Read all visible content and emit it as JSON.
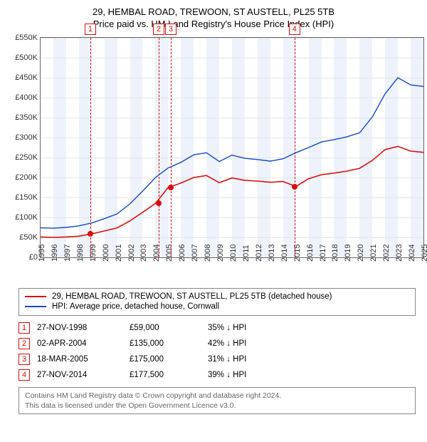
{
  "title_line1": "29, HEMBAL ROAD, TREWOON, ST AUSTELL, PL25 5TB",
  "title_line2": "Price paid vs. HM Land Registry's House Price Index (HPI)",
  "chart": {
    "type": "line",
    "background_color": "#ffffff",
    "band_color": "#edf2fb",
    "grid_color": "#e4e4e4",
    "axis_color": "#666666",
    "xlim": [
      1995,
      2025
    ],
    "xtick_step": 1,
    "xtick_rotation": -90,
    "xlabel_fontsize": 11,
    "ylim": [
      0,
      550000
    ],
    "ytick_step": 50000,
    "ytick_labels": [
      "£0",
      "£50K",
      "£100K",
      "£150K",
      "£200K",
      "£250K",
      "£300K",
      "£350K",
      "£400K",
      "£450K",
      "£500K",
      "£550K"
    ],
    "ylabel_fontsize": 11,
    "x_years": [
      1995,
      1996,
      1997,
      1998,
      1999,
      2000,
      2001,
      2002,
      2003,
      2004,
      2005,
      2006,
      2007,
      2008,
      2009,
      2010,
      2011,
      2012,
      2013,
      2014,
      2015,
      2016,
      2017,
      2018,
      2019,
      2020,
      2021,
      2022,
      2023,
      2024,
      2025
    ],
    "series": {
      "property": {
        "label": "29, HEMBAL ROAD, TREWOON, ST AUSTELL, PL25 5TB (detached house)",
        "color": "#d90e0e",
        "line_width": 1.6,
        "y": [
          51000,
          50000,
          51000,
          53000,
          59000,
          66000,
          74000,
          91000,
          113000,
          135000,
          175000,
          186000,
          200000,
          205000,
          187000,
          199000,
          193000,
          191000,
          188000,
          190000,
          177500,
          197000,
          207000,
          211000,
          216000,
          223000,
          243000,
          270000,
          278000,
          266000,
          263000
        ]
      },
      "hpi": {
        "label": "HPI: Average price, detached house, Cornwall",
        "color": "#1349c4",
        "line_width": 1.4,
        "y": [
          74000,
          73000,
          75000,
          79000,
          86000,
          97000,
          109000,
          134000,
          166000,
          200000,
          224000,
          238000,
          257000,
          262000,
          240000,
          256000,
          248000,
          245000,
          241000,
          247000,
          262000,
          275000,
          289000,
          295000,
          302000,
          312000,
          352000,
          410000,
          450000,
          432000,
          428000
        ]
      }
    },
    "sales": [
      {
        "badge": "1",
        "year": 1998.9,
        "price": 59000,
        "dot_color": "#d90e0e",
        "line_color": "#d90e0e"
      },
      {
        "badge": "2",
        "year": 2004.25,
        "price": 135000,
        "dot_color": "#d90e0e",
        "line_color": "#d90e0e"
      },
      {
        "badge": "3",
        "year": 2005.2,
        "price": 175000,
        "dot_color": "#d90e0e",
        "line_color": "#d90e0e"
      },
      {
        "badge": "4",
        "year": 2014.9,
        "price": 177500,
        "dot_color": "#d90e0e",
        "line_color": "#d90e0e"
      }
    ],
    "badge_border_color": "#d90e0e",
    "badge_text_color": "#d90e0e"
  },
  "legend": {
    "items": [
      {
        "color": "#d90e0e",
        "label_path": "chart.series.property.label"
      },
      {
        "color": "#1349c4",
        "label_path": "chart.series.hpi.label"
      }
    ]
  },
  "sales_table": {
    "rows": [
      {
        "badge": "1",
        "date": "27-NOV-1998",
        "price": "£59,000",
        "delta": "35% ↓ HPI"
      },
      {
        "badge": "2",
        "date": "02-APR-2004",
        "price": "£135,000",
        "delta": "42% ↓ HPI"
      },
      {
        "badge": "3",
        "date": "18-MAR-2005",
        "price": "£175,000",
        "delta": "31% ↓ HPI"
      },
      {
        "badge": "4",
        "date": "27-NOV-2014",
        "price": "£177,500",
        "delta": "39% ↓ HPI"
      }
    ],
    "badge_border_color": "#d90e0e",
    "badge_text_color": "#d90e0e"
  },
  "footnote_line1": "Contains HM Land Registry data © Crown copyright and database right 2024.",
  "footnote_line2": "This data is licensed under the Open Government Licence v3.0."
}
